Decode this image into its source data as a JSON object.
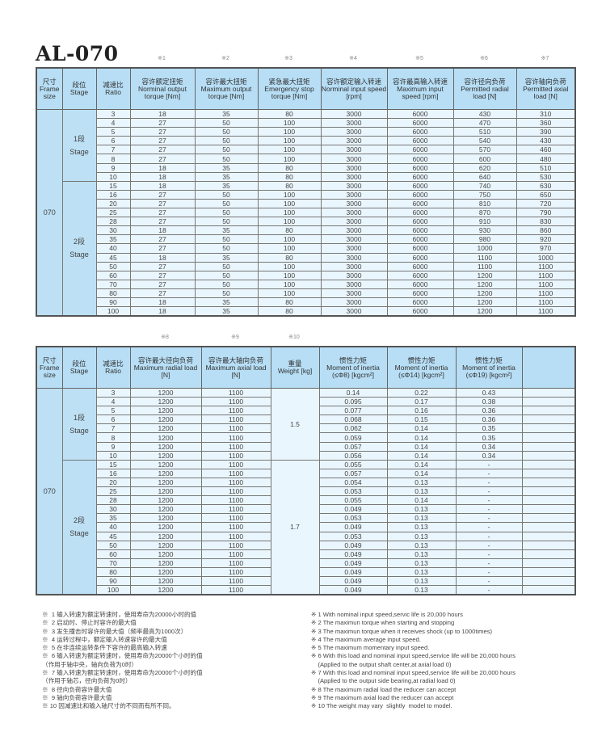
{
  "title": "AL-070",
  "colors": {
    "header_bg": "#b7def5",
    "group_bg": "#bde0f5",
    "cell_bg": "#eaf6fd"
  },
  "table1": {
    "note_marks": [
      "※1",
      "※2",
      "※3",
      "※4",
      "※5",
      "※6",
      "※7"
    ],
    "headers": [
      {
        "cn": "尺寸",
        "en": "Frame size"
      },
      {
        "cn": "段位",
        "en": "Stage"
      },
      {
        "cn": "减速比",
        "en": "Ratio"
      },
      {
        "cn": "容许额定扭矩",
        "en": "Norminal output torque [Nm]"
      },
      {
        "cn": "容许最大扭矩",
        "en": "Maximum output torque [Nm]"
      },
      {
        "cn": "紧急最大扭矩",
        "en": "Emergency stop torque [Nm]"
      },
      {
        "cn": "容许额定输入转速",
        "en": "Norminal input speed [rpm]"
      },
      {
        "cn": "容许最高输入转速",
        "en": "Maximum input speed [rpm]"
      },
      {
        "cn": "容许径向负荷",
        "en": "Permitted radial load [N]"
      },
      {
        "cn": "容许轴向负荷",
        "en": "Permitted axial load [N]"
      }
    ],
    "frame": "070",
    "stages": [
      {
        "cn": "1段",
        "en": "Stage"
      },
      {
        "cn": "2段",
        "en": "Stage"
      }
    ],
    "rows": [
      [
        "3",
        "18",
        "35",
        "80",
        "3000",
        "6000",
        "430",
        "310"
      ],
      [
        "4",
        "27",
        "50",
        "100",
        "3000",
        "6000",
        "470",
        "360"
      ],
      [
        "5",
        "27",
        "50",
        "100",
        "3000",
        "6000",
        "510",
        "390"
      ],
      [
        "6",
        "27",
        "50",
        "100",
        "3000",
        "6000",
        "540",
        "430"
      ],
      [
        "7",
        "27",
        "50",
        "100",
        "3000",
        "6000",
        "570",
        "460"
      ],
      [
        "8",
        "27",
        "50",
        "100",
        "3000",
        "6000",
        "600",
        "480"
      ],
      [
        "9",
        "18",
        "35",
        "80",
        "3000",
        "6000",
        "620",
        "510"
      ],
      [
        "10",
        "18",
        "35",
        "80",
        "3000",
        "6000",
        "640",
        "530"
      ],
      [
        "15",
        "18",
        "35",
        "80",
        "3000",
        "6000",
        "740",
        "630"
      ],
      [
        "16",
        "27",
        "50",
        "100",
        "3000",
        "6000",
        "750",
        "650"
      ],
      [
        "20",
        "27",
        "50",
        "100",
        "3000",
        "6000",
        "810",
        "720"
      ],
      [
        "25",
        "27",
        "50",
        "100",
        "3000",
        "6000",
        "870",
        "790"
      ],
      [
        "28",
        "27",
        "50",
        "100",
        "3000",
        "6000",
        "910",
        "830"
      ],
      [
        "30",
        "18",
        "35",
        "80",
        "3000",
        "6000",
        "930",
        "860"
      ],
      [
        "35",
        "27",
        "50",
        "100",
        "3000",
        "6000",
        "980",
        "920"
      ],
      [
        "40",
        "27",
        "50",
        "100",
        "3000",
        "6000",
        "1000",
        "970"
      ],
      [
        "45",
        "18",
        "35",
        "80",
        "3000",
        "6000",
        "1100",
        "1000"
      ],
      [
        "50",
        "27",
        "50",
        "100",
        "3000",
        "6000",
        "1100",
        "1100"
      ],
      [
        "60",
        "27",
        "50",
        "100",
        "3000",
        "6000",
        "1200",
        "1100"
      ],
      [
        "70",
        "27",
        "50",
        "100",
        "3000",
        "6000",
        "1200",
        "1100"
      ],
      [
        "80",
        "27",
        "50",
        "100",
        "3000",
        "6000",
        "1200",
        "1100"
      ],
      [
        "90",
        "18",
        "35",
        "80",
        "3000",
        "6000",
        "1200",
        "1100"
      ],
      [
        "100",
        "18",
        "35",
        "80",
        "3000",
        "6000",
        "1200",
        "1100"
      ]
    ]
  },
  "table2": {
    "note_marks": [
      "※8",
      "※9",
      "※10"
    ],
    "headers": [
      {
        "cn": "尺寸",
        "en": "Frame size"
      },
      {
        "cn": "段位",
        "en": "Stage"
      },
      {
        "cn": "减速比",
        "en": "Ratio"
      },
      {
        "cn": "容许最大径向负荷",
        "en": "Maximum radial load [N]"
      },
      {
        "cn": "容许最大轴向负荷",
        "en": "Maximum axial load [N]"
      },
      {
        "cn": "重量",
        "en": "Weight [kg]"
      },
      {
        "cn": "惯性力矩",
        "en": "Moment of inertia (≤Φ8) [kgcm²]"
      },
      {
        "cn": "惯性力矩",
        "en": "Moment of inertia (≤Φ14) [kgcm²]"
      },
      {
        "cn": "惯性力矩",
        "en": "Moment of inertia (≤Φ19) [kgcm²]"
      },
      {
        "cn": "",
        "en": ""
      }
    ],
    "frame": "070",
    "stages": [
      {
        "cn": "1段",
        "en": "Stage"
      },
      {
        "cn": "2段",
        "en": "Stage"
      }
    ],
    "weights": [
      "1.5",
      "1.7"
    ],
    "rows": [
      [
        "3",
        "1200",
        "1100",
        "0.14",
        "0.22",
        "0.43"
      ],
      [
        "4",
        "1200",
        "1100",
        "0.095",
        "0.17",
        "0.38"
      ],
      [
        "5",
        "1200",
        "1100",
        "0.077",
        "0.16",
        "0.36"
      ],
      [
        "6",
        "1200",
        "1100",
        "0.068",
        "0.15",
        "0.36"
      ],
      [
        "7",
        "1200",
        "1100",
        "0.062",
        "0.14",
        "0.35"
      ],
      [
        "8",
        "1200",
        "1100",
        "0.059",
        "0.14",
        "0.35"
      ],
      [
        "9",
        "1200",
        "1100",
        "0.057",
        "0.14",
        "0.34"
      ],
      [
        "10",
        "1200",
        "1100",
        "0.056",
        "0.14",
        "0.34"
      ],
      [
        "15",
        "1200",
        "1100",
        "0.055",
        "0.14",
        "-"
      ],
      [
        "16",
        "1200",
        "1100",
        "0.057",
        "0.14",
        "-"
      ],
      [
        "20",
        "1200",
        "1100",
        "0.054",
        "0.13",
        "-"
      ],
      [
        "25",
        "1200",
        "1100",
        "0.053",
        "0.13",
        "-"
      ],
      [
        "28",
        "1200",
        "1100",
        "0.055",
        "0.14",
        "-"
      ],
      [
        "30",
        "1200",
        "1100",
        "0.049",
        "0.13",
        "-"
      ],
      [
        "35",
        "1200",
        "1100",
        "0.053",
        "0.13",
        "-"
      ],
      [
        "40",
        "1200",
        "1100",
        "0.049",
        "0.13",
        "-"
      ],
      [
        "45",
        "1200",
        "1100",
        "0.053",
        "0.13",
        "-"
      ],
      [
        "50",
        "1200",
        "1100",
        "0.049",
        "0.13",
        "-"
      ],
      [
        "60",
        "1200",
        "1100",
        "0.049",
        "0.13",
        "-"
      ],
      [
        "70",
        "1200",
        "1100",
        "0.049",
        "0.13",
        "-"
      ],
      [
        "80",
        "1200",
        "1100",
        "0.049",
        "0.13",
        "-"
      ],
      [
        "90",
        "1200",
        "1100",
        "0.049",
        "0.13",
        "-"
      ],
      [
        "100",
        "1200",
        "1100",
        "0.049",
        "0.13",
        "-"
      ]
    ]
  },
  "footnotes_cn": [
    "※  1 输入转速为额定转速时，使用寿命为20000小时的值",
    "※  2 启动时、停止时容许的最大值",
    "※  3 发生撞击时容许的最大值（频率最高为1000次）",
    "※  4 运转过程中，额定输入转速容许的最大值",
    "※  5 在非连续运转条件下容许的最高输入转速",
    "※  6 输入转速为额定转速时，使用寿命为20000个小时的值",
    "（作用于轴中央，轴向负荷为0时）",
    "※  7 输入转速为额定转速时，使用寿命为20000个小时的值",
    "（作用于轴芯，径向负荷为0时）",
    "※  8 径向负荷容许最大值",
    "※  9 轴向负荷容许最大值",
    "※ 10 因减速比和输入轴尺寸的不同而有所不同。"
  ],
  "footnotes_en": [
    "※ 1 With nominal input speed,servic life is 20,000 hours",
    "※ 2 The maximun torque when starting and stopping",
    "※ 3 The maximun torque when it receives shock (up to 1000times)",
    "※ 4 The maximum average input speed.",
    "※ 5 The maximum momentary input speed.",
    "※ 6 With this load and nominal input speed,service life will be 20,000 hours",
    "    (Applied to the output shaft center,at axial load 0)",
    "※ 7 With this load and nominal input speed,service life will be 20,000 hours",
    "    (Applied to the output side bearing,at radial load 0)",
    "※ 8 The maximum radial load the reducer can accept",
    "※ 9 The maximum axial load the reducer can accept",
    "※ 10 The weight may vary  slightly  model to model."
  ]
}
